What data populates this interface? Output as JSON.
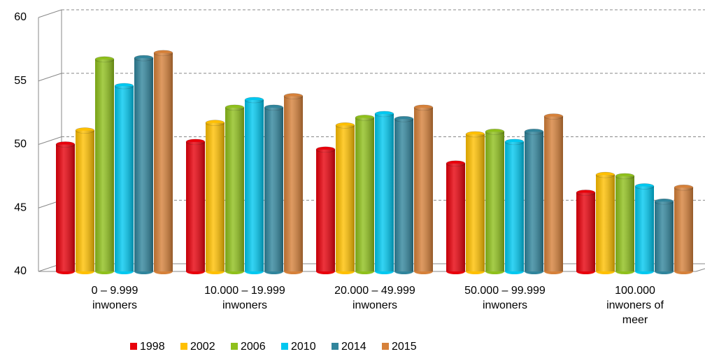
{
  "chart_data": {
    "type": "bar",
    "categories": [
      "0 – 9.999\ninwoners",
      "10.000 – 19.999\ninwoners",
      "20.000 – 49.999\ninwoners",
      "50.000 – 99.999\ninwoners",
      "100.000\ninwoners of\nmeer"
    ],
    "series": [
      {
        "name": "1998",
        "color": "#e8000b",
        "values": [
          50.0,
          50.2,
          49.6,
          48.5,
          46.2
        ]
      },
      {
        "name": "2002",
        "color": "#ffc000",
        "values": [
          51.1,
          51.7,
          51.5,
          50.8,
          47.6
        ]
      },
      {
        "name": "2006",
        "color": "#8fc01c",
        "values": [
          56.7,
          52.9,
          52.1,
          51.0,
          47.5
        ]
      },
      {
        "name": "2010",
        "color": "#00c8f0",
        "values": [
          54.6,
          53.5,
          52.4,
          50.2,
          46.7
        ]
      },
      {
        "name": "2014",
        "color": "#31859c",
        "values": [
          56.8,
          52.9,
          52.0,
          51.0,
          45.5
        ]
      },
      {
        "name": "2015",
        "color": "#d6813a",
        "values": [
          57.2,
          53.8,
          52.9,
          52.2,
          46.6
        ]
      }
    ],
    "ylim": [
      40,
      60
    ],
    "yticks": [
      40,
      45,
      50,
      55,
      60
    ],
    "grid": true,
    "legend": "bottom"
  }
}
